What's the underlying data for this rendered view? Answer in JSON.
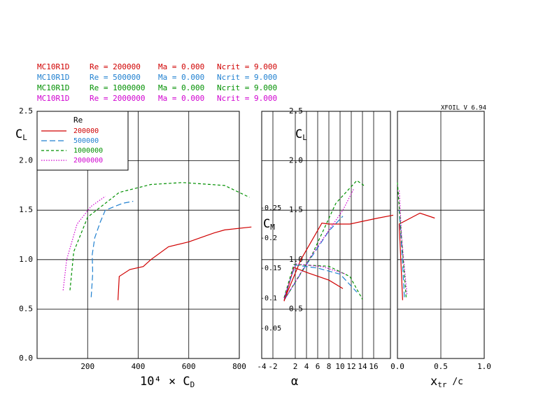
{
  "header": {
    "runs": [
      {
        "airfoil": "MC10R1D",
        "re": "Re = 200000",
        "ma": "Ma = 0.000",
        "ncrit": "Ncrit = 9.000",
        "color": "#d00000"
      },
      {
        "airfoil": "MC10R1D",
        "re": "Re = 500000",
        "ma": "Ma = 0.000",
        "ncrit": "Ncrit = 9.000",
        "color": "#2080d0"
      },
      {
        "airfoil": "MC10R1D",
        "re": "Re = 1000000",
        "ma": "Ma = 0.000",
        "ncrit": "Ncrit = 9.000",
        "color": "#009000"
      },
      {
        "airfoil": "MC10R1D",
        "re": "Re = 2000000",
        "ma": "Ma = 0.000",
        "ncrit": "Ncrit = 9.000",
        "color": "#d000d0"
      }
    ],
    "version": "XFOIL V 6.94"
  },
  "chart_data": [
    {
      "type": "line",
      "xlabel": "10⁴ × C",
      "xlabel_sub": "D",
      "ylabel": "C",
      "ylabel_sub": "L",
      "xlim": [
        0,
        800
      ],
      "ylim": [
        0,
        2.5
      ],
      "xticks": [
        200,
        400,
        600,
        800
      ],
      "yticks": [
        {
          "value": 0,
          "label": "0.0"
        },
        {
          "value": 0.5,
          "label": "0.5"
        },
        {
          "value": 1,
          "label": "1.0"
        },
        {
          "value": 1.5,
          "label": "1.5"
        },
        {
          "value": 2,
          "label": "2.0"
        },
        {
          "value": 2.5,
          "label": "2.5"
        }
      ],
      "grid": true,
      "legend": {
        "title": "Re",
        "position": "upper left"
      },
      "series": [
        {
          "name": "200000",
          "color": "#d00000",
          "dash": "none",
          "x": [
            320,
            325,
            367,
            420,
            450,
            520,
            600,
            645,
            700,
            742,
            848
          ],
          "values": [
            0.59,
            0.83,
            0.9,
            0.93,
            1.0,
            1.13,
            1.18,
            1.22,
            1.27,
            1.3,
            1.33
          ]
        },
        {
          "name": "500000",
          "color": "#2080d0",
          "dash": "8,4",
          "x": [
            214,
            220,
            218,
            228,
            250,
            270,
            339,
            380
          ],
          "values": [
            0.62,
            0.86,
            1.05,
            1.22,
            1.38,
            1.5,
            1.57,
            1.59
          ]
        },
        {
          "name": "1000000",
          "color": "#009000",
          "dash": "4,3",
          "x": [
            130,
            145,
            200,
            325,
            450,
            575,
            742,
            840
          ],
          "values": [
            0.69,
            1.08,
            1.43,
            1.68,
            1.76,
            1.78,
            1.75,
            1.63
          ]
        },
        {
          "name": "2000000",
          "color": "#d000d0",
          "dash": "1.5,2",
          "x": [
            103,
            117,
            158,
            214,
            270
          ],
          "values": [
            0.69,
            1.0,
            1.36,
            1.54,
            1.64
          ]
        }
      ]
    },
    {
      "type": "line",
      "xlabel": "α",
      "ylabel": "C",
      "ylabel_sub": "L",
      "y2label": "C",
      "y2label_sub": "M",
      "xlim": [
        -4,
        19
      ],
      "ylim": [
        0,
        2.5
      ],
      "y2lim": [
        0,
        -0.41
      ],
      "xticks": [
        -4,
        -2,
        2,
        4,
        6,
        8,
        10,
        12,
        14,
        16
      ],
      "yticks": [
        {
          "value": 0.5,
          "label": "0.5"
        },
        {
          "value": 1,
          "label": "1.0"
        },
        {
          "value": 1.5,
          "label": "1.5"
        },
        {
          "value": 2,
          "label": "2.0"
        },
        {
          "value": 2.5,
          "label": "2.5"
        }
      ],
      "y2ticks": [
        -0.05,
        -0.1,
        -0.15,
        -0.2,
        -0.25
      ],
      "grid": true,
      "series": [
        {
          "color": "#d00000",
          "dash": "none",
          "x": [
            0,
            3,
            6.75,
            8,
            11.75,
            16.75,
            19.5
          ],
          "values": [
            0.59,
            1.0,
            1.37,
            1.36,
            1.36,
            1.42,
            1.45
          ]
        },
        {
          "color": "#2080d0",
          "dash": "8,4",
          "x": [
            0,
            4,
            8,
            10.5
          ],
          "values": [
            0.59,
            0.95,
            1.29,
            1.44
          ]
        },
        {
          "color": "#009000",
          "dash": "4,3",
          "x": [
            0,
            5,
            9.25,
            13,
            14.25
          ],
          "values": [
            0.59,
            1.05,
            1.57,
            1.8,
            1.75
          ]
        },
        {
          "color": "#d000d0",
          "dash": "1.5,2",
          "x": [
            0,
            5,
            10.5,
            12.4
          ],
          "values": [
            0.59,
            1.05,
            1.5,
            1.71
          ]
        },
        {
          "color": "#d00000",
          "dash": "none",
          "axis": "y2",
          "x": [
            0,
            1.75,
            4.25,
            8,
            10.5
          ],
          "values": [
            -0.095,
            -0.151,
            -0.142,
            -0.13,
            -0.116
          ]
        },
        {
          "color": "#2080d0",
          "dash": "8,4",
          "axis": "y2",
          "x": [
            0,
            2,
            6,
            10,
            13
          ],
          "values": [
            -0.1,
            -0.155,
            -0.15,
            -0.14,
            -0.11
          ]
        },
        {
          "color": "#009000",
          "dash": "4,3",
          "axis": "y2",
          "x": [
            0,
            1.75,
            8,
            11.75,
            14
          ],
          "values": [
            -0.101,
            -0.156,
            -0.153,
            -0.136,
            -0.098
          ]
        },
        {
          "color": "#d000d0",
          "dash": "1.5,2",
          "axis": "y2",
          "x": [
            0,
            2,
            7,
            11
          ],
          "values": [
            -0.1,
            -0.157,
            -0.152,
            -0.14
          ]
        }
      ]
    },
    {
      "type": "line",
      "xlabel": "x",
      "xlabel_sub": "tr",
      "xlabel_after": " /c",
      "xlim": [
        0,
        1
      ],
      "ylim": [
        0,
        2.5
      ],
      "xticks": [
        {
          "value": 0,
          "label": "0.0"
        },
        {
          "value": 0.5,
          "label": "0.5"
        },
        {
          "value": 1,
          "label": "1.0"
        }
      ],
      "grid": true,
      "series": [
        {
          "color": "#d00000",
          "dash": "none",
          "x": [
            0.06,
            0.02,
            0.26,
            0.43
          ],
          "values": [
            0.59,
            1.36,
            1.47,
            1.42
          ]
        },
        {
          "color": "#2080d0",
          "dash": "8,4",
          "x": [
            0.08,
            0.05,
            0.02
          ],
          "values": [
            0.62,
            1.1,
            1.5
          ]
        },
        {
          "color": "#009000",
          "dash": "4,3",
          "x": [
            0.1,
            0.04,
            0
          ],
          "values": [
            0.62,
            1.3,
            1.78
          ]
        },
        {
          "color": "#d000d0",
          "dash": "1.5,2",
          "x": [
            0.11,
            0.05,
            0.02
          ],
          "values": [
            0.65,
            1.2,
            1.71
          ]
        }
      ]
    }
  ]
}
